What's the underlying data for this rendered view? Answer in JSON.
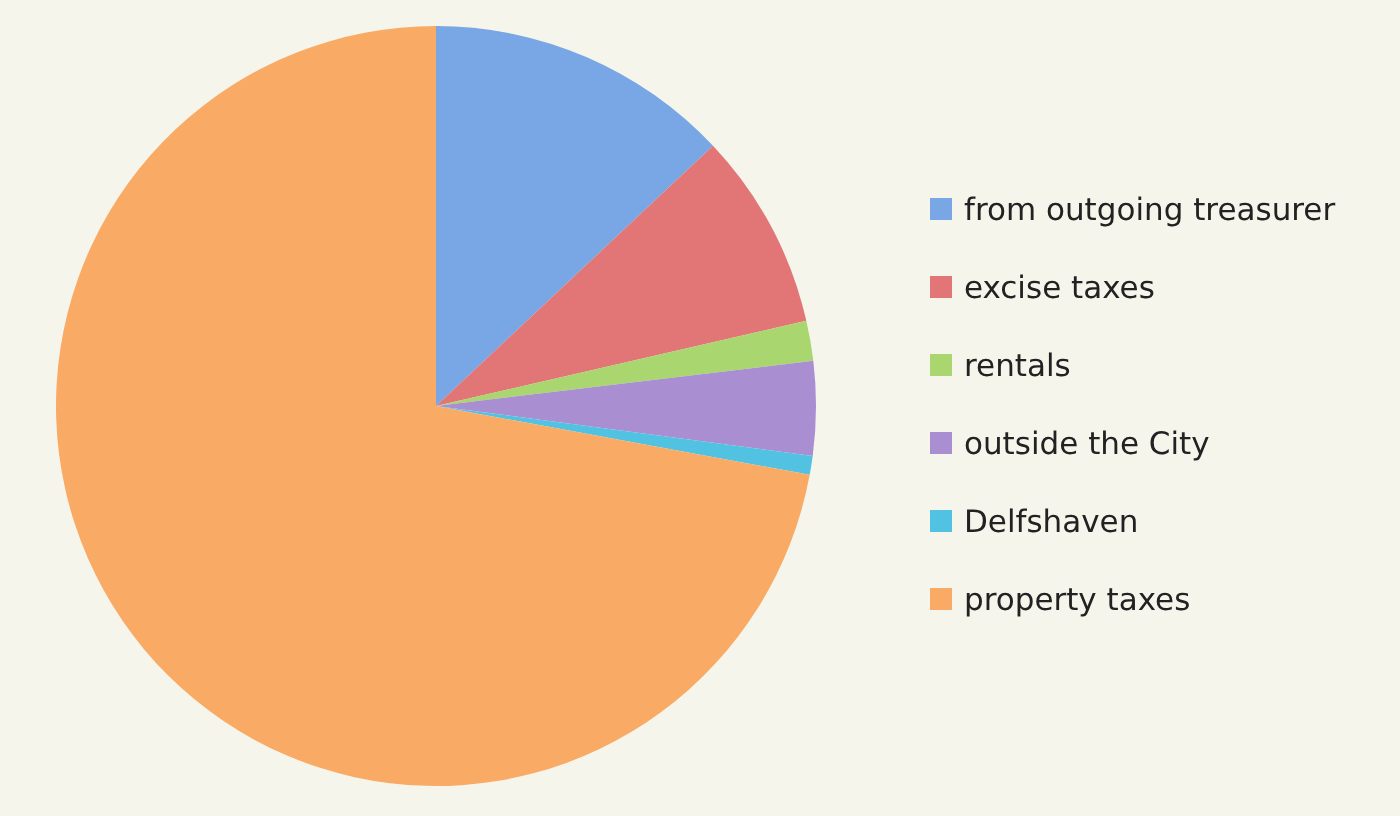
{
  "chart_data": {
    "type": "pie",
    "categories": [
      "from outgoing treasurer",
      "excise taxes",
      "rentals",
      "outside the City",
      "Delfshaven",
      "property taxes"
    ],
    "values": [
      13,
      8.4,
      1.7,
      4,
      0.8,
      72.1
    ],
    "colors": [
      "#79a6e4",
      "#e27676",
      "#a9d66e",
      "#a98fd2",
      "#52c2e2",
      "#f9ab66"
    ],
    "legend": "right"
  }
}
